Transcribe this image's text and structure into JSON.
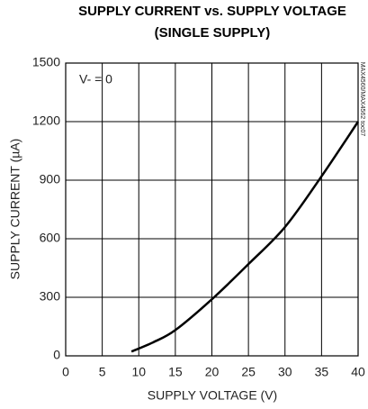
{
  "chart_data": {
    "type": "line",
    "title": "SUPPLY CURRENT vs. SUPPLY VOLTAGE",
    "subtitle": "(SINGLE SUPPLY)",
    "x_label": "SUPPLY VOLTAGE (V)",
    "y_label": "SUPPLY CURRENT (µA)",
    "annotation": "V- = 0",
    "side_label": "MAX4560/MAX4562 toc07",
    "x": [
      9,
      12,
      15,
      20,
      25,
      30,
      35,
      40
    ],
    "values": [
      22,
      70,
      132,
      290,
      470,
      660,
      920,
      1200
    ],
    "color": "#000000",
    "xlim": [
      0,
      40
    ],
    "xticks": [
      0,
      5,
      10,
      15,
      20,
      25,
      30,
      35,
      40
    ],
    "ylim": [
      0,
      1500
    ],
    "yticks": [
      0,
      300,
      600,
      900,
      1200,
      1500
    ],
    "grid": true
  }
}
